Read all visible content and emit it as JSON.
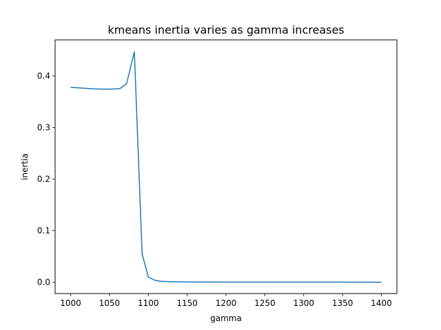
{
  "chart_data": {
    "type": "line",
    "title": "kmeans inertia varies as gamma increases",
    "xlabel": "gamma",
    "ylabel": "inertia",
    "xlim": [
      980,
      1420
    ],
    "ylim": [
      -0.022,
      0.47
    ],
    "xticks": [
      1000,
      1050,
      1100,
      1150,
      1200,
      1250,
      1300,
      1350,
      1400
    ],
    "xtick_labels": [
      "1000",
      "1050",
      "1100",
      "1150",
      "1200",
      "1250",
      "1300",
      "1350",
      "1400"
    ],
    "yticks": [
      0.0,
      0.1,
      0.2,
      0.3,
      0.4
    ],
    "ytick_labels": [
      "0.0",
      "0.1",
      "0.2",
      "0.3",
      "0.4"
    ],
    "grid": false,
    "series": [
      {
        "color": "#1f77b4",
        "x": [
          1000,
          1010,
          1020,
          1030,
          1040,
          1050,
          1060,
          1064,
          1072,
          1082,
          1092,
          1100,
          1108,
          1115,
          1125,
          1135,
          1150,
          1175,
          1200,
          1250,
          1300,
          1350,
          1400
        ],
        "y": [
          0.378,
          0.377,
          0.376,
          0.375,
          0.3745,
          0.3745,
          0.375,
          0.376,
          0.385,
          0.447,
          0.055,
          0.01,
          0.004,
          0.002,
          0.0012,
          0.0008,
          0.0005,
          0.0003,
          0.0002,
          0.0001,
          0.0001,
          0.0001,
          0.0
        ]
      }
    ]
  }
}
